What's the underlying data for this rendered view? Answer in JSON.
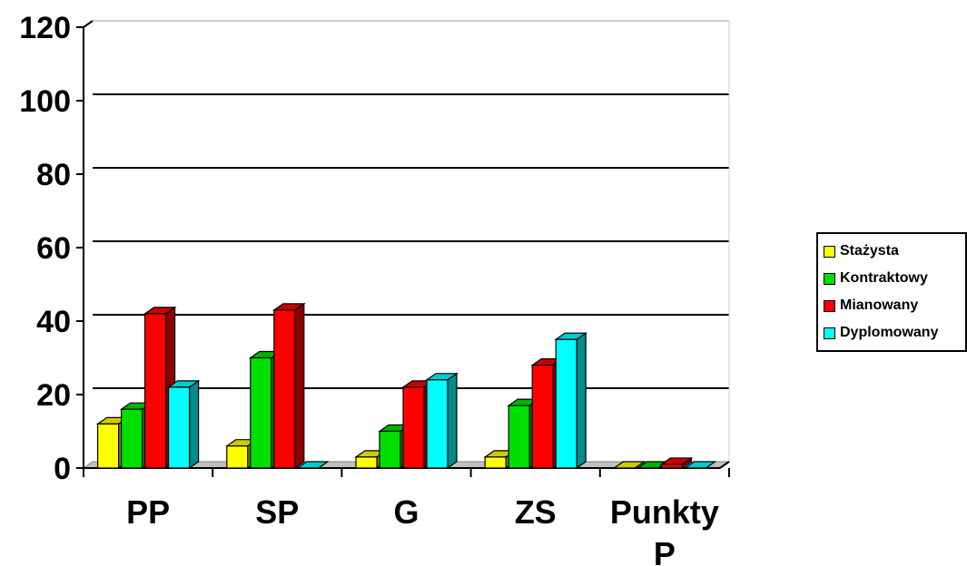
{
  "chart_data": {
    "type": "bar",
    "title": "",
    "xlabel": "",
    "ylabel": "",
    "categories": [
      "PP",
      "SP",
      "G",
      "ZS",
      "Punkty P"
    ],
    "category_lines": [
      [
        "PP"
      ],
      [
        "SP"
      ],
      [
        "G"
      ],
      [
        "ZS"
      ],
      [
        "Punkty",
        "P"
      ]
    ],
    "series": [
      {
        "name": "Stażysta",
        "values": [
          12,
          6,
          3,
          3,
          0
        ],
        "color": "#FFFF00"
      },
      {
        "name": "Kontraktowy",
        "values": [
          16,
          30,
          10,
          17,
          0
        ],
        "color": "#00E000"
      },
      {
        "name": "Mianowany",
        "values": [
          42,
          43,
          22,
          28,
          1
        ],
        "color": "#FF0000"
      },
      {
        "name": "Dyplomowany",
        "values": [
          22,
          0,
          24,
          35,
          0
        ],
        "color": "#00FFFF"
      }
    ],
    "ylim": [
      0,
      120
    ],
    "yticks": [
      "0",
      "20",
      "40",
      "60",
      "80",
      "100",
      "120"
    ],
    "ytick_values": [
      0,
      20,
      40,
      60,
      80,
      100,
      120
    ],
    "grid": true,
    "legend_position": "right",
    "three_d": true
  }
}
